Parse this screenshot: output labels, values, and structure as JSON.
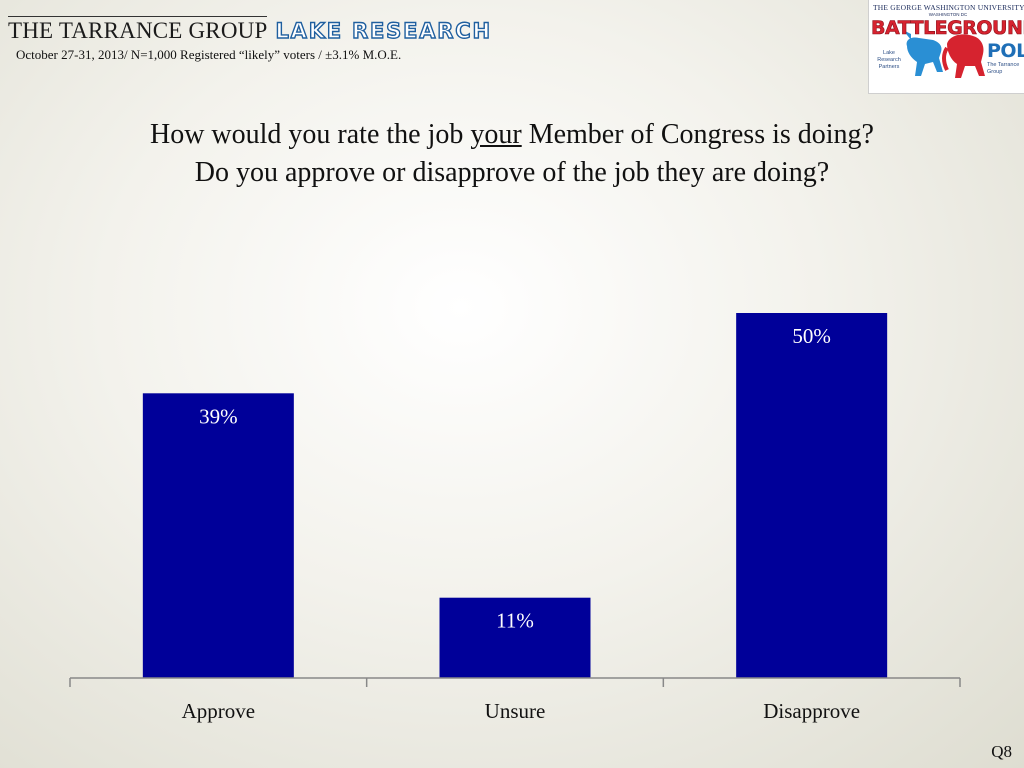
{
  "header": {
    "brand_left": "THE TARRANCE GROUP",
    "brand_right": "LAKE RESEARCH",
    "subheader": "October 27-31, 2013/ N=1,000 Registered “likely” voters / ±3.1% M.O.E."
  },
  "logo": {
    "university": "THE GEORGE WASHINGTON UNIVERSITY",
    "city": "WASHINGTON DC",
    "word1": "BATTLEGROUND",
    "word2": "POLL",
    "partner_left": "Lake Research Partners",
    "partner_right": "The Tarrance Group"
  },
  "question": {
    "line1_before": "How would you rate the job ",
    "line1_underlined": "your",
    "line1_after": " Member of Congress is doing?",
    "line2": "Do you approve or disapprove of the job they are doing?"
  },
  "question_number": "Q8",
  "colors": {
    "bar": "#000099",
    "bar_label": "#ffffff",
    "axis": "#888888"
  },
  "chart_data": {
    "type": "bar",
    "categories": [
      "Approve",
      "Unsure",
      "Disapprove"
    ],
    "values": [
      39,
      11,
      50
    ],
    "value_labels": [
      "39%",
      "11%",
      "50%"
    ],
    "ylim": [
      0,
      50
    ],
    "grid": false,
    "legend": "none"
  }
}
